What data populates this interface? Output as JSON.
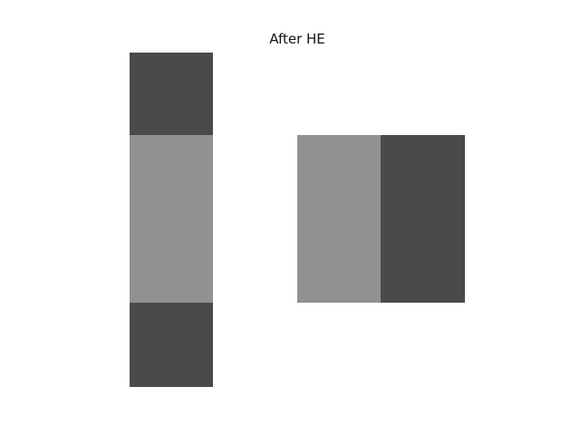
{
  "title": "After HE",
  "colors": {
    "background": "#ffffff",
    "dark_gray": "#4a4a4a",
    "light_gray": "#919191"
  },
  "image": {
    "cells": [
      {
        "name": "left-column-top-block",
        "tone": "dark_gray"
      },
      {
        "name": "left-column-middle-block",
        "tone": "light_gray"
      },
      {
        "name": "left-column-bottom-block",
        "tone": "dark_gray"
      },
      {
        "name": "right-block-left-half",
        "tone": "light_gray"
      },
      {
        "name": "right-block-right-half",
        "tone": "dark_gray"
      }
    ]
  }
}
